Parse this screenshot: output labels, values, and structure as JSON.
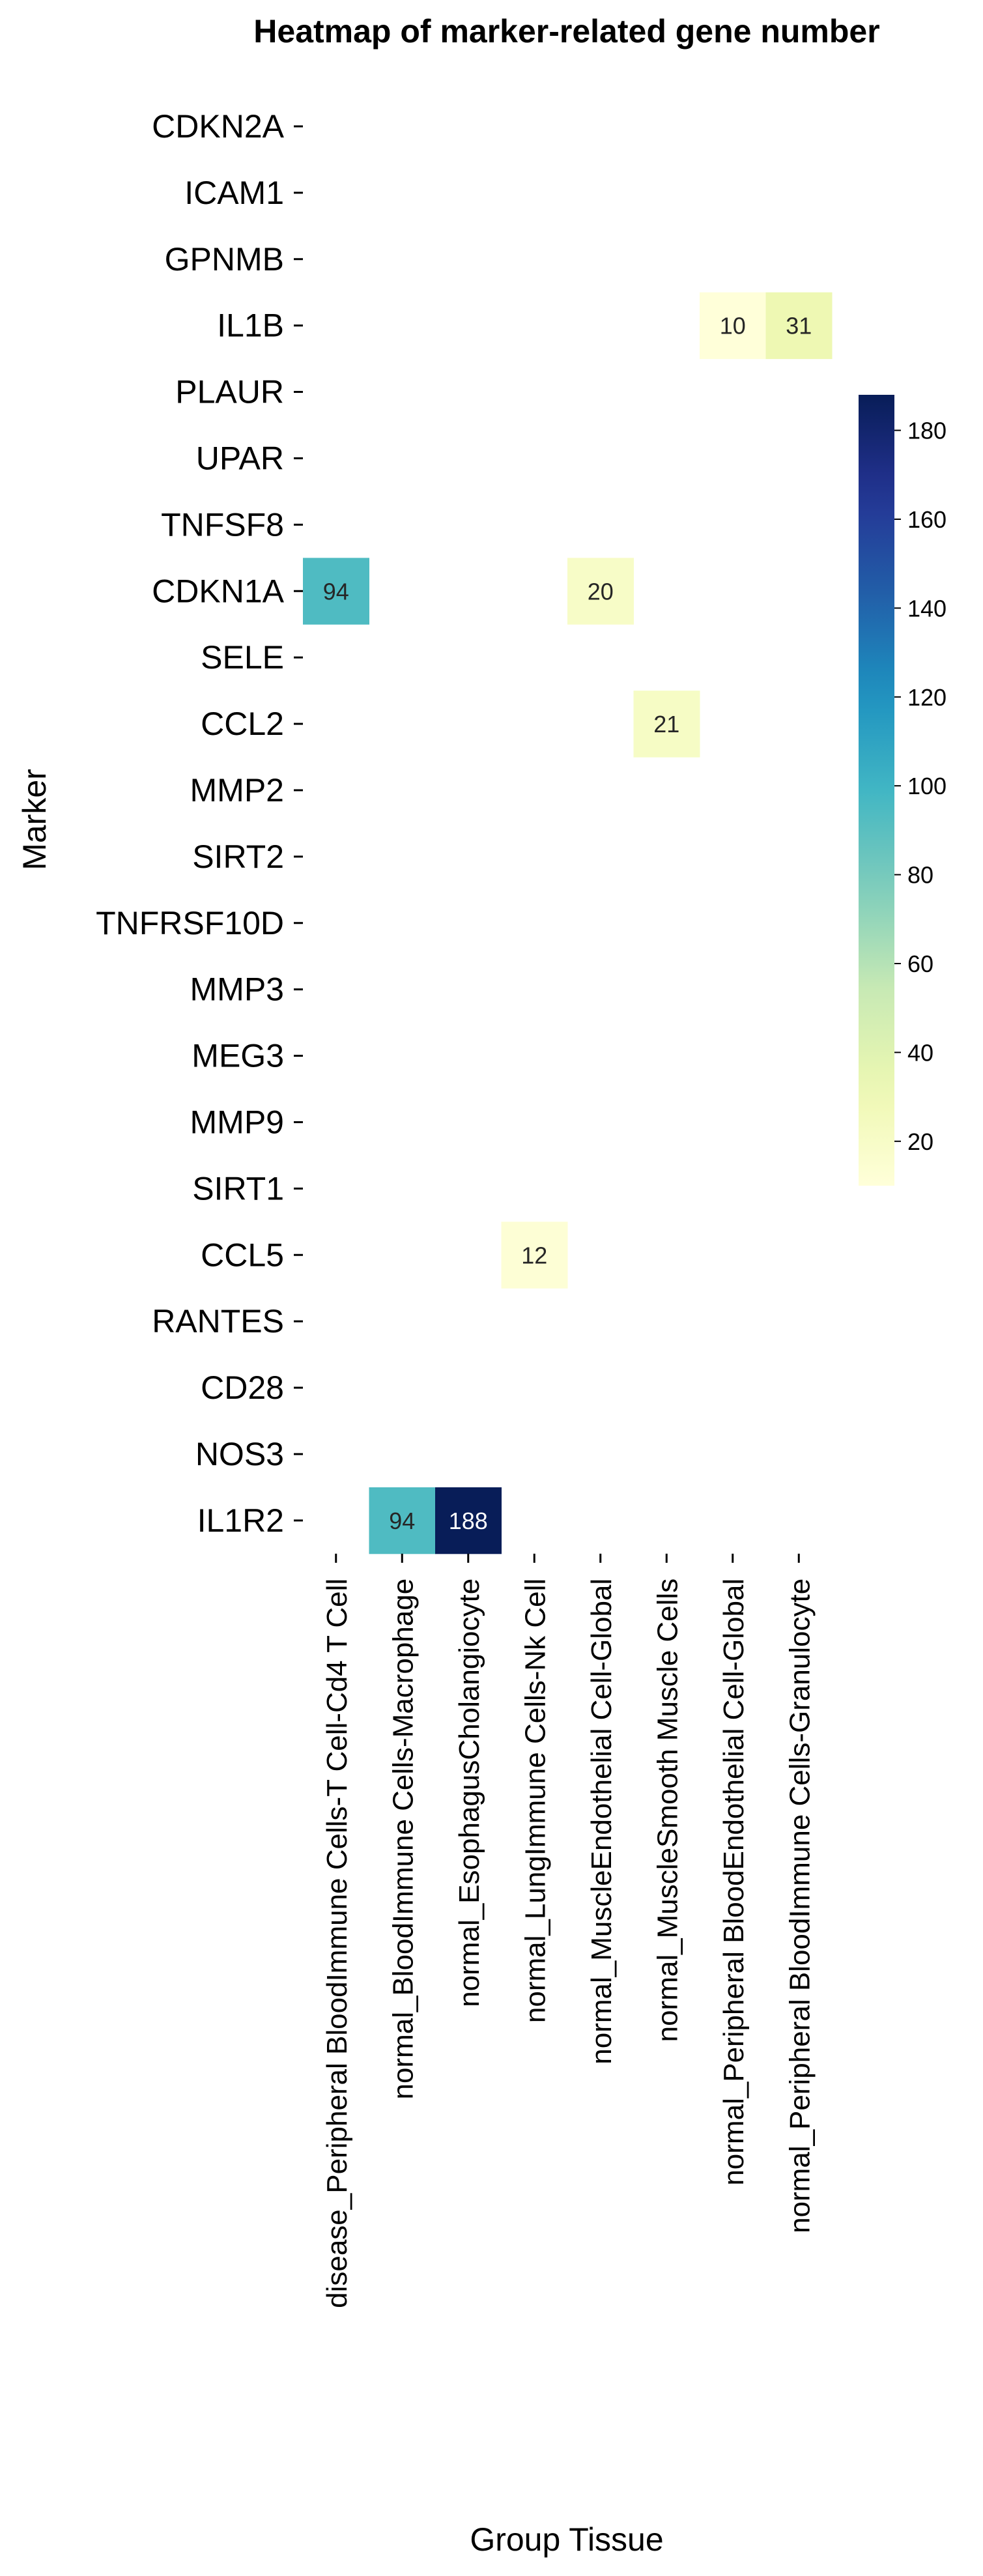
{
  "chart_data": {
    "type": "heatmap",
    "title": "Heatmap of marker-related gene number",
    "xlabel": "Group Tissue",
    "ylabel": "Marker",
    "rows": [
      "CDKN2A",
      "ICAM1",
      "GPNMB",
      "IL1B",
      "PLAUR",
      "UPAR",
      "TNFSF8",
      "CDKN1A",
      "SELE",
      "CCL2",
      "MMP2",
      "SIRT2",
      "TNFRSF10D",
      "MMP3",
      "MEG3",
      "MMP9",
      "SIRT1",
      "CCL5",
      "RANTES",
      "CD28",
      "NOS3",
      "IL1R2"
    ],
    "columns": [
      "disease_Peripheral BloodImmune Cells-T Cell-Cd4 T Cell",
      "normal_BloodImmune Cells-Macrophage",
      "normal_EsophagusCholangiocyte",
      "normal_LungImmune Cells-Nk Cell",
      "normal_MuscleEndothelial Cell-Global",
      "normal_MuscleSmooth Muscle Cells",
      "normal_Peripheral BloodEndothelial Cell-Global",
      "normal_Peripheral BloodImmune Cells-Granulocyte"
    ],
    "values": [
      [
        null,
        null,
        null,
        null,
        null,
        null,
        null,
        null
      ],
      [
        null,
        null,
        null,
        null,
        null,
        null,
        null,
        null
      ],
      [
        null,
        null,
        null,
        null,
        null,
        null,
        null,
        null
      ],
      [
        null,
        null,
        null,
        null,
        null,
        null,
        10,
        31
      ],
      [
        null,
        null,
        null,
        null,
        null,
        null,
        null,
        null
      ],
      [
        null,
        null,
        null,
        null,
        null,
        null,
        null,
        null
      ],
      [
        null,
        null,
        null,
        null,
        null,
        null,
        null,
        null
      ],
      [
        94,
        null,
        null,
        null,
        20,
        null,
        null,
        null
      ],
      [
        null,
        null,
        null,
        null,
        null,
        null,
        null,
        null
      ],
      [
        null,
        null,
        null,
        null,
        null,
        21,
        null,
        null
      ],
      [
        null,
        null,
        null,
        null,
        null,
        null,
        null,
        null
      ],
      [
        null,
        null,
        null,
        null,
        null,
        null,
        null,
        null
      ],
      [
        null,
        null,
        null,
        null,
        null,
        null,
        null,
        null
      ],
      [
        null,
        null,
        null,
        null,
        null,
        null,
        null,
        null
      ],
      [
        null,
        null,
        null,
        null,
        null,
        null,
        null,
        null
      ],
      [
        null,
        null,
        null,
        null,
        null,
        null,
        null,
        null
      ],
      [
        null,
        null,
        null,
        null,
        null,
        null,
        null,
        null
      ],
      [
        null,
        null,
        null,
        12,
        null,
        null,
        null,
        null
      ],
      [
        null,
        null,
        null,
        null,
        null,
        null,
        null,
        null
      ],
      [
        null,
        null,
        null,
        null,
        null,
        null,
        null,
        null
      ],
      [
        null,
        null,
        null,
        null,
        null,
        null,
        null,
        null
      ],
      [
        null,
        94,
        188,
        null,
        null,
        null,
        null,
        null
      ]
    ],
    "colorbar": {
      "colormap": "YlGnBu",
      "range": [
        10,
        188
      ],
      "ticks": [
        20,
        40,
        60,
        80,
        100,
        120,
        140,
        160,
        180
      ]
    },
    "grid": false,
    "legend": "colorbar-right"
  }
}
